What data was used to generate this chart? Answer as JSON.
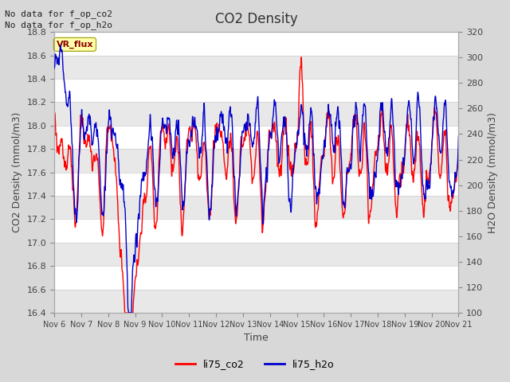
{
  "title": "CO2 Density",
  "xlabel": "Time",
  "ylabel_left": "CO2 Density (mmol/m3)",
  "ylabel_right": "H2O Density (mmol/m3)",
  "note_line1": "No data for f_op_co2",
  "note_line2": "No data for f_op_h2o",
  "vr_label": "VR_flux",
  "legend_co2": "li75_co2",
  "legend_h2o": "li75_h2o",
  "color_co2": "#ff0000",
  "color_h2o": "#0000cc",
  "ylim_left": [
    16.4,
    18.8
  ],
  "ylim_right": [
    100,
    320
  ],
  "yticks_left": [
    16.4,
    16.6,
    16.8,
    17.0,
    17.2,
    17.4,
    17.6,
    17.8,
    18.0,
    18.2,
    18.4,
    18.6,
    18.8
  ],
  "yticks_right": [
    100,
    120,
    140,
    160,
    180,
    200,
    220,
    240,
    260,
    280,
    300,
    320
  ],
  "xtick_labels": [
    "Nov 6",
    "Nov 7",
    "Nov 8",
    "Nov 9",
    "Nov 10",
    "Nov 11",
    "Nov 12",
    "Nov 13",
    "Nov 14",
    "Nov 15",
    "Nov 16",
    "Nov 17",
    "Nov 18",
    "Nov 19",
    "Nov 20",
    "Nov 21"
  ],
  "background_color": "#d8d8d8",
  "plot_bg_color": "#ffffff",
  "band_color_light": "#ffffff",
  "band_color_dark": "#e8e8e8",
  "linewidth": 1.0,
  "figsize": [
    6.4,
    4.8
  ],
  "dpi": 100
}
